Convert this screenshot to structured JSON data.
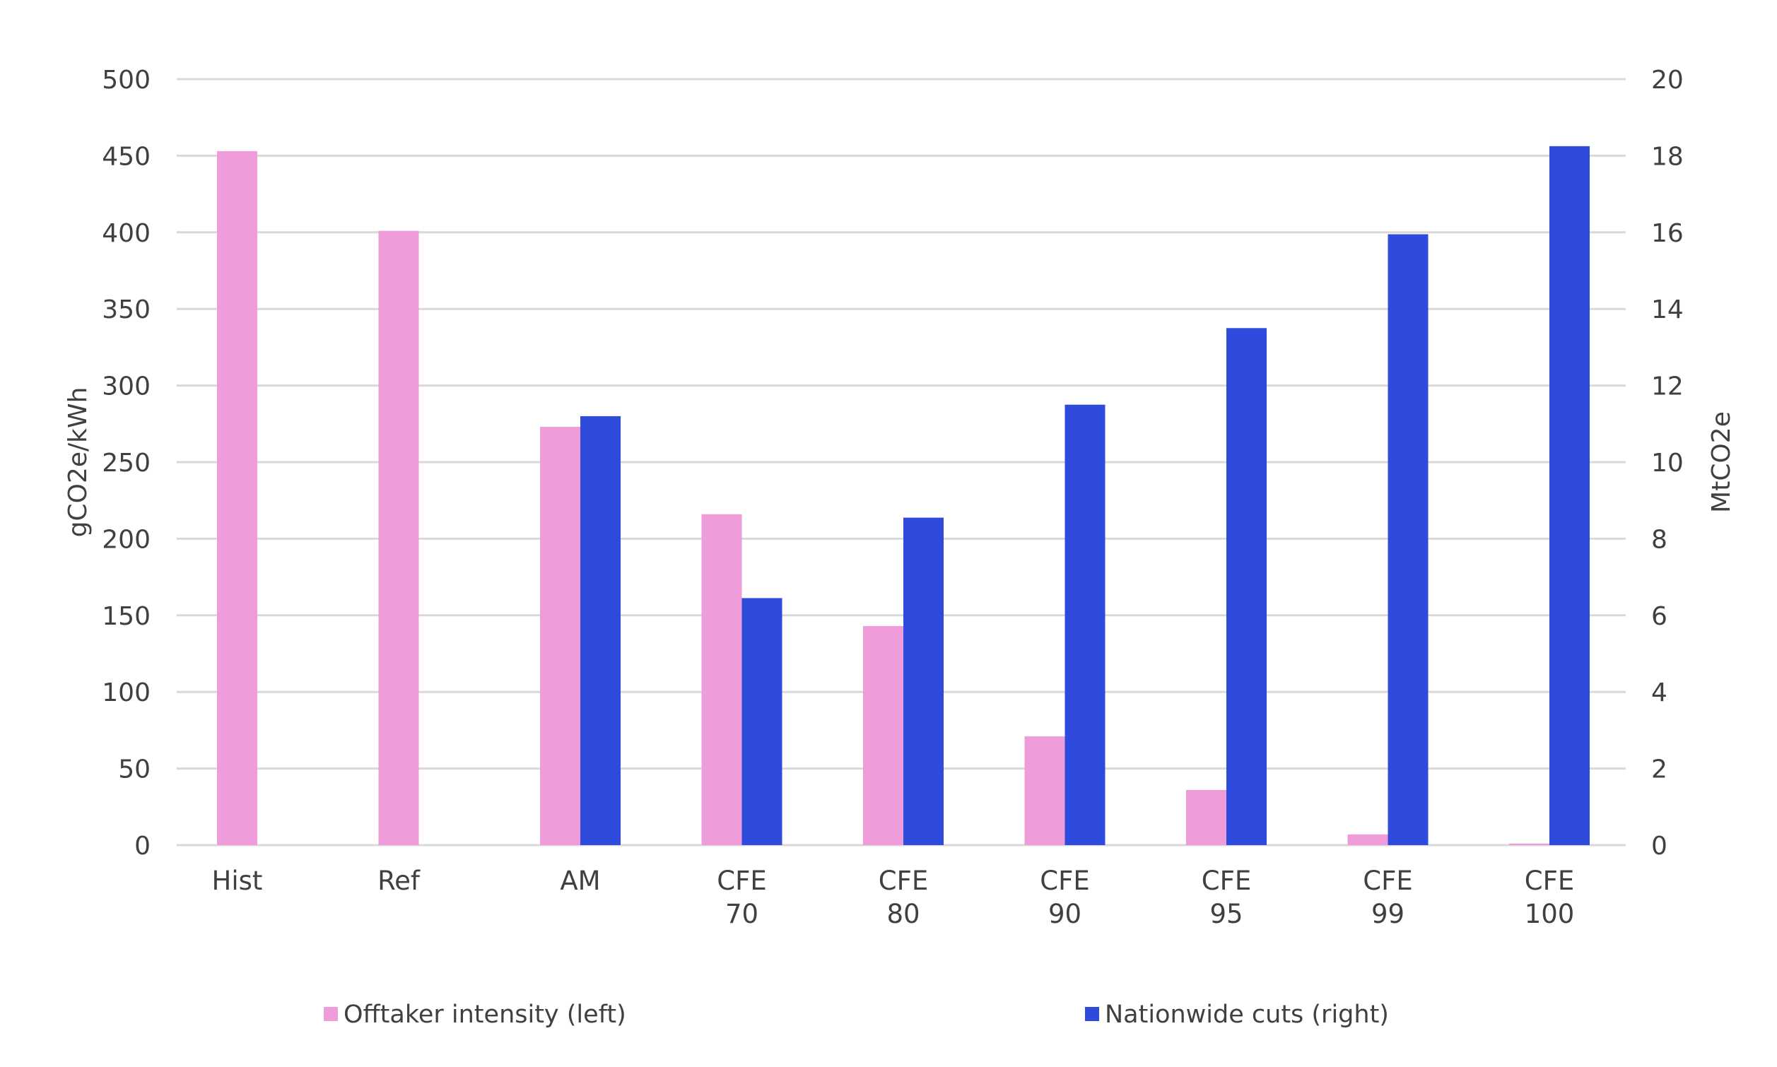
{
  "colors": {
    "left_series": "#ee9cda",
    "right_series": "#2e4bdb",
    "grid": "#d9d9d9",
    "text": "#404040"
  },
  "chart_data": {
    "type": "bar",
    "categories": [
      [
        "Hist"
      ],
      [
        "Ref"
      ],
      [
        "AM"
      ],
      [
        "CFE",
        "70"
      ],
      [
        "CFE",
        "80"
      ],
      [
        "CFE",
        "90"
      ],
      [
        "CFE",
        "95"
      ],
      [
        "CFE",
        "99"
      ],
      [
        "CFE",
        "100"
      ]
    ],
    "series": [
      {
        "name": "Offtaker intensity (left)",
        "axis": "left",
        "values": [
          453,
          401,
          273,
          216,
          143,
          71,
          36,
          7,
          1
        ]
      },
      {
        "name": "Nationwide cuts (right)",
        "axis": "right",
        "values": [
          null,
          null,
          11.2,
          6.45,
          8.55,
          11.5,
          13.5,
          15.95,
          18.25
        ]
      }
    ],
    "ylabel_left": "gCO2e/kWh",
    "ylabel_right": "MtCO2e",
    "ylim_left": [
      0,
      500
    ],
    "ylim_right": [
      0,
      20
    ],
    "yticks_left": [
      "0",
      "50",
      "100",
      "150",
      "200",
      "250",
      "300",
      "350",
      "400",
      "450",
      "500"
    ],
    "yticks_right": [
      "0",
      "2",
      "4",
      "6",
      "8",
      "10",
      "12",
      "14",
      "16",
      "18",
      "20"
    ],
    "grid": true,
    "legend_position": "bottom"
  }
}
